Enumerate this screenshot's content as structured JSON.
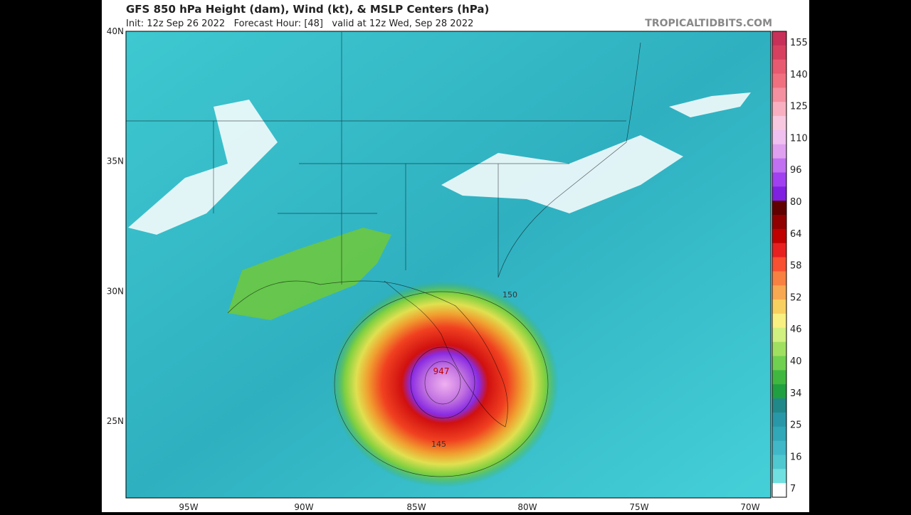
{
  "header": {
    "title": "GFS 850 hPa Height (dam), Wind (kt), & MSLP Centers (hPa)",
    "subtitle": "Init: 12z Sep 26 2022   Forecast Hour: [48]   valid at 12z Wed, Sep 28 2022",
    "brand": "TROPICALTIDBITS.COM"
  },
  "map": {
    "latitude_labels": [
      "40N",
      "35N",
      "30N",
      "25N"
    ],
    "longitude_labels": [
      "95W",
      "90W",
      "85W",
      "80W",
      "75W",
      "70W"
    ],
    "contour_labels": [
      "150",
      "145"
    ],
    "low_center_label": "947"
  },
  "colorbar": {
    "labels": [
      "155",
      "140",
      "125",
      "110",
      "96",
      "80",
      "64",
      "58",
      "52",
      "46",
      "40",
      "34",
      "25",
      "16",
      "7"
    ]
  }
}
